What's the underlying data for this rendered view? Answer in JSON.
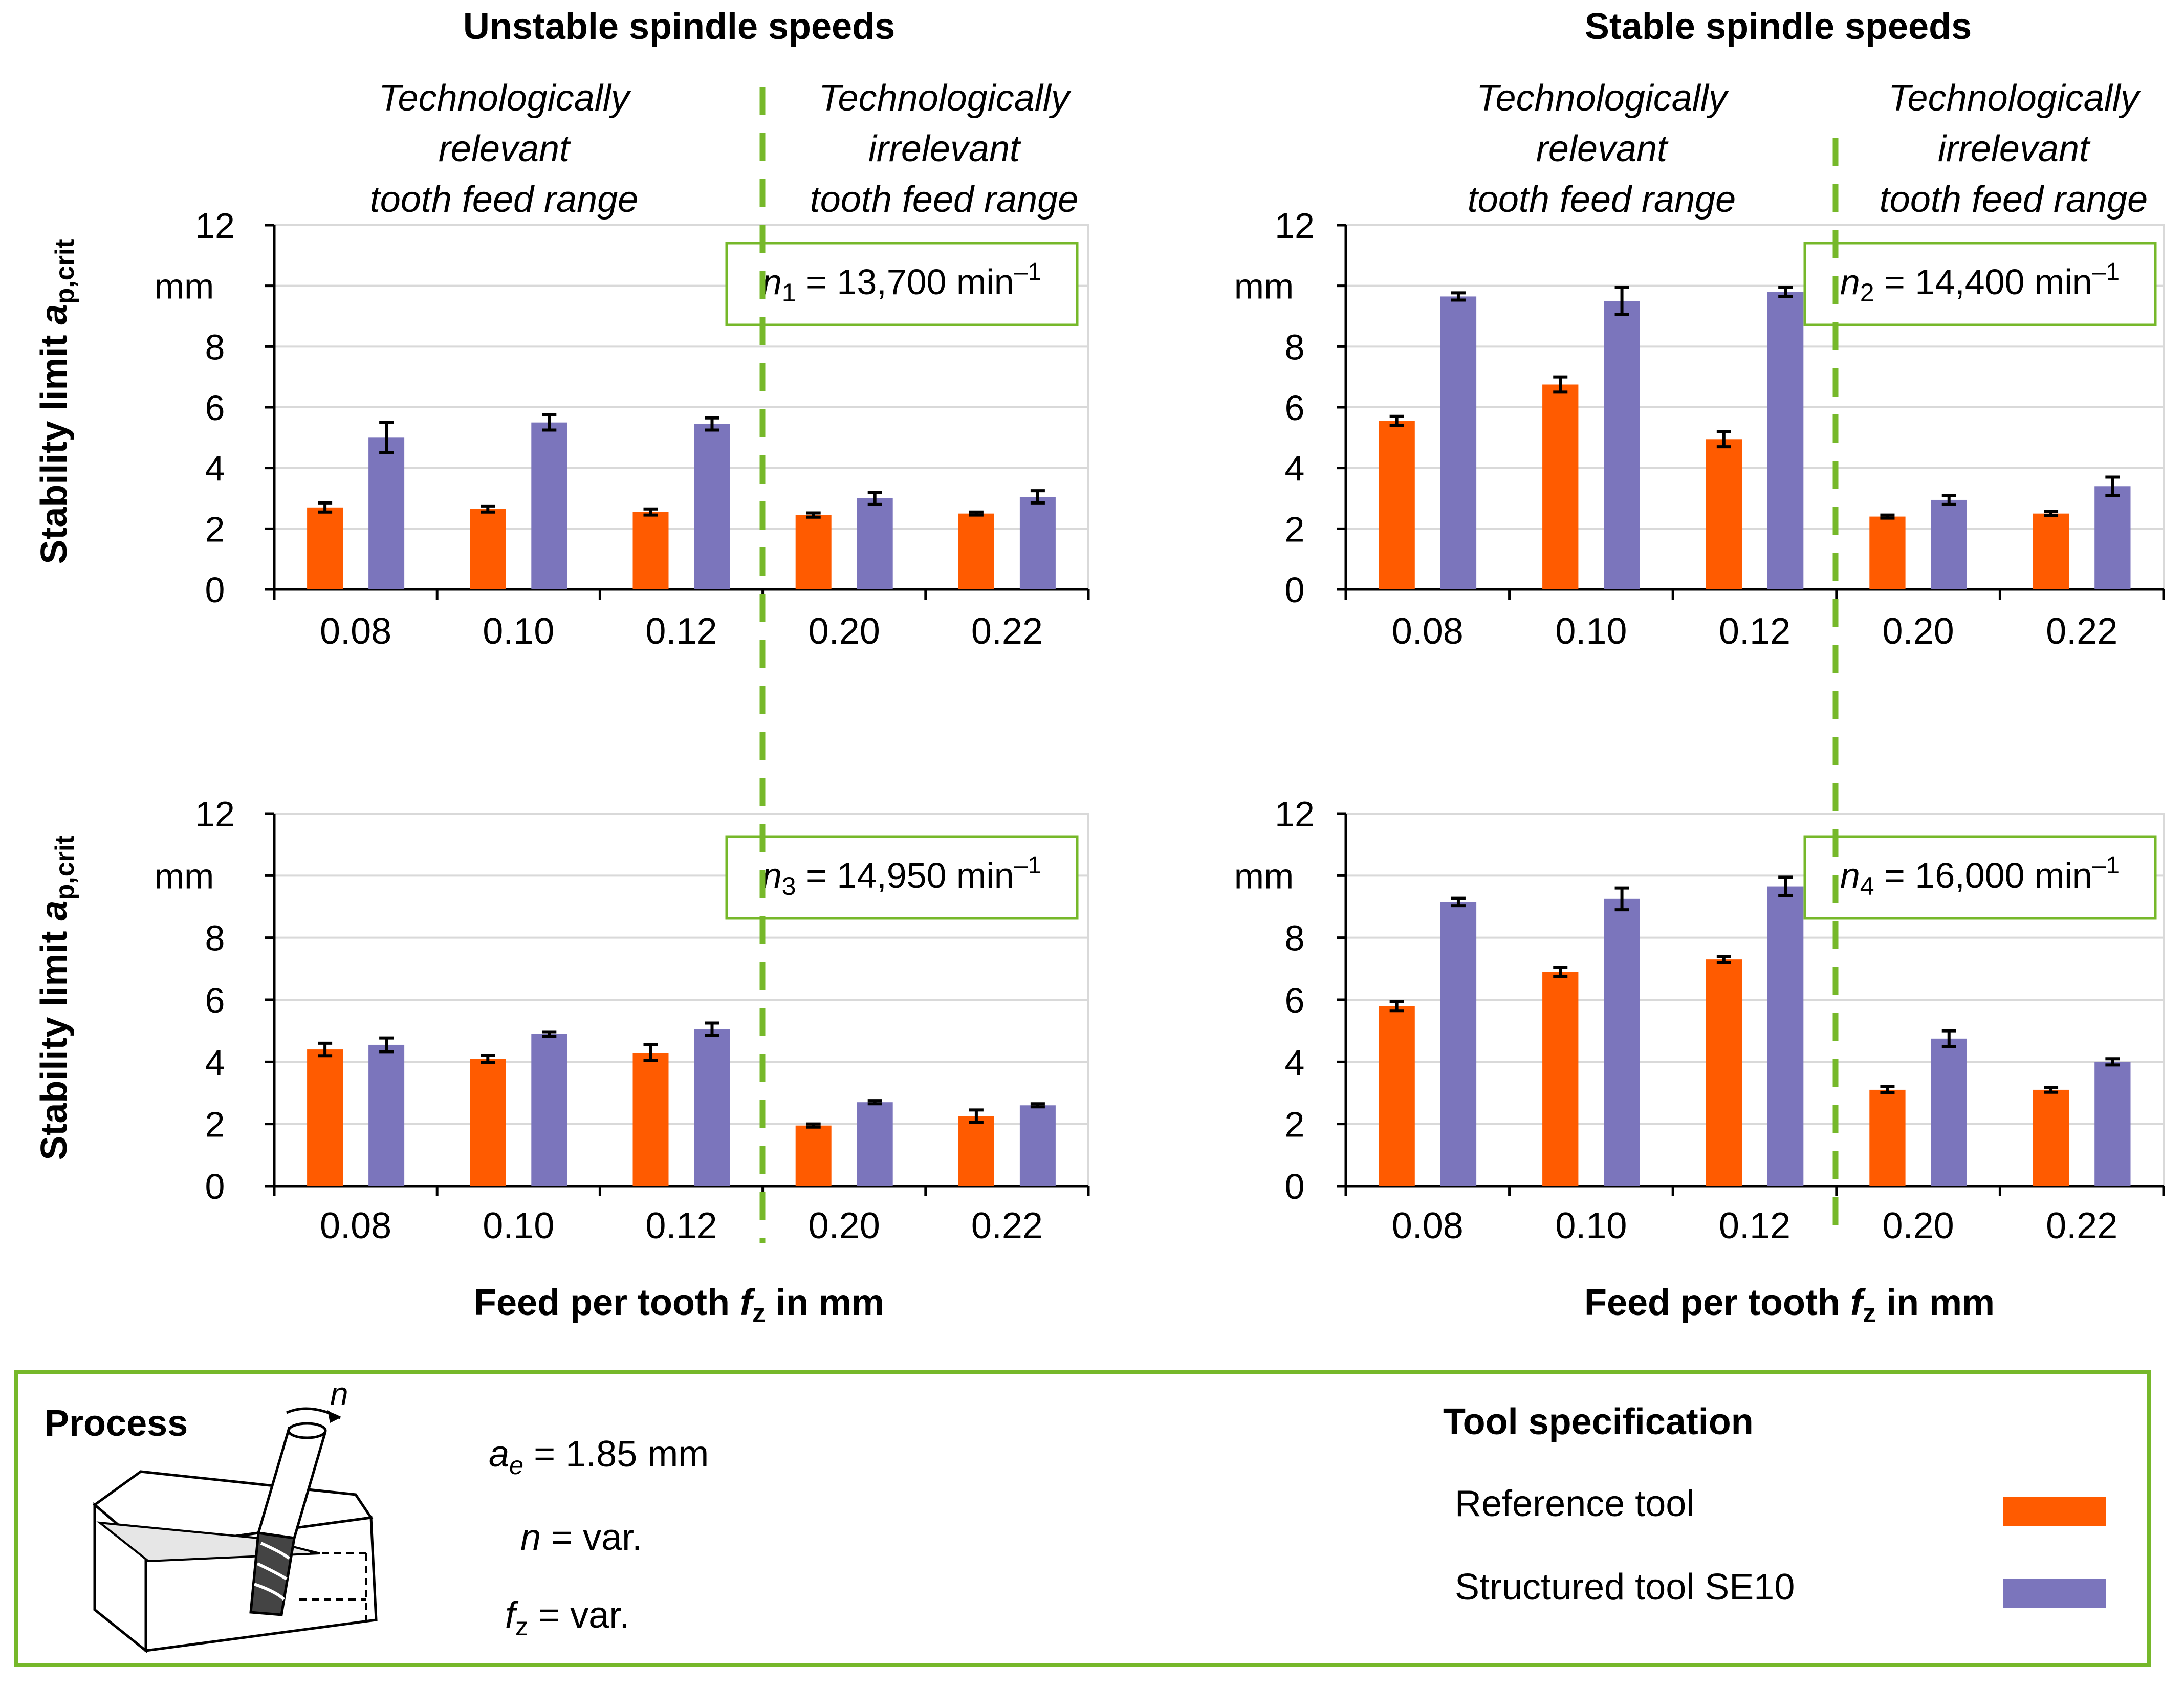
{
  "colors": {
    "reference": "#ff5b00",
    "structured": "#7b75bc",
    "green": "#76b82a",
    "grid": "#d9d9d9"
  },
  "headers": {
    "unstable": "Unstable spindle speeds",
    "stable": "Stable spindle speeds",
    "relevant_lines": [
      "Technologically",
      "relevant",
      "tooth feed range"
    ],
    "irrelevant_lines": [
      "Technologically",
      "irrelevant",
      "tooth feed range"
    ]
  },
  "axis": {
    "ylabel_main": "Stability limit ",
    "ylabel_var": "a",
    "ylabel_sub": "p,crit",
    "y_unit": "mm",
    "xlabel_main": "Feed per tooth ",
    "xlabel_var": "f",
    "xlabel_sub": "z",
    "xlabel_tail": " in mm"
  },
  "chart_data": [
    {
      "type": "bar",
      "id": "n1",
      "speed_var": "n",
      "speed_index": "1",
      "speed_value": " = 13,700 min",
      "speed_exp": "–1",
      "categories": [
        "0.08",
        "0.10",
        "0.12",
        "0.20",
        "0.22"
      ],
      "ylim": [
        0,
        12
      ],
      "yticks": [
        "0",
        "2",
        "4",
        "6",
        "8",
        "12"
      ],
      "series": [
        {
          "name": "Reference tool",
          "values": [
            2.7,
            2.65,
            2.55,
            2.45,
            2.5
          ],
          "errors": [
            0.15,
            0.1,
            0.1,
            0.07,
            0.05
          ]
        },
        {
          "name": "Structured tool SE10",
          "values": [
            5.0,
            5.5,
            5.45,
            3.0,
            3.05
          ],
          "errors": [
            0.5,
            0.25,
            0.2,
            0.2,
            0.2
          ]
        }
      ]
    },
    {
      "type": "bar",
      "id": "n2",
      "speed_var": "n",
      "speed_index": "2",
      "speed_value": " = 14,400 min",
      "speed_exp": "–1",
      "categories": [
        "0.08",
        "0.10",
        "0.12",
        "0.20",
        "0.22"
      ],
      "ylim": [
        0,
        12
      ],
      "yticks": [
        "0",
        "2",
        "4",
        "6",
        "8",
        "12"
      ],
      "series": [
        {
          "name": "Reference tool",
          "values": [
            5.55,
            6.75,
            4.95,
            2.4,
            2.5
          ],
          "errors": [
            0.15,
            0.25,
            0.25,
            0.05,
            0.07
          ]
        },
        {
          "name": "Structured tool SE10",
          "values": [
            9.65,
            9.5,
            9.8,
            2.95,
            3.4
          ],
          "errors": [
            0.12,
            0.45,
            0.15,
            0.15,
            0.3
          ]
        }
      ]
    },
    {
      "type": "bar",
      "id": "n3",
      "speed_var": "n",
      "speed_index": "3",
      "speed_value": " = 14,950 min",
      "speed_exp": "–1",
      "categories": [
        "0.08",
        "0.10",
        "0.12",
        "0.20",
        "0.22"
      ],
      "ylim": [
        0,
        12
      ],
      "yticks": [
        "0",
        "2",
        "4",
        "6",
        "8",
        "12"
      ],
      "series": [
        {
          "name": "Reference tool",
          "values": [
            4.4,
            4.1,
            4.3,
            1.95,
            2.25
          ],
          "errors": [
            0.2,
            0.12,
            0.25,
            0.05,
            0.2
          ]
        },
        {
          "name": "Structured tool SE10",
          "values": [
            4.55,
            4.9,
            5.05,
            2.7,
            2.6
          ],
          "errors": [
            0.22,
            0.07,
            0.2,
            0.05,
            0.05
          ]
        }
      ]
    },
    {
      "type": "bar",
      "id": "n4",
      "speed_var": "n",
      "speed_index": "4",
      "speed_value": " = 16,000 min",
      "speed_exp": "–1",
      "categories": [
        "0.08",
        "0.10",
        "0.12",
        "0.20",
        "0.22"
      ],
      "ylim": [
        0,
        12
      ],
      "yticks": [
        "0",
        "2",
        "4",
        "6",
        "8",
        "12"
      ],
      "series": [
        {
          "name": "Reference tool",
          "values": [
            5.8,
            6.9,
            7.3,
            3.1,
            3.1
          ],
          "errors": [
            0.15,
            0.15,
            0.1,
            0.1,
            0.08
          ]
        },
        {
          "name": "Structured tool SE10",
          "values": [
            9.15,
            9.25,
            9.65,
            4.75,
            4.0
          ],
          "errors": [
            0.12,
            0.35,
            0.3,
            0.25,
            0.1
          ]
        }
      ]
    }
  ],
  "legend": {
    "process_label": "Process",
    "rotation_label": "n",
    "ae_var": "a",
    "ae_sub": "e",
    "ae_value": " = 1.85 mm",
    "n_var": "n",
    "n_value": " = var.",
    "fz_var": "f",
    "fz_sub": "z",
    "fz_value": " = var.",
    "tool_spec_title": "Tool specification",
    "reference_label": "Reference tool",
    "structured_label": "Structured tool SE10"
  }
}
